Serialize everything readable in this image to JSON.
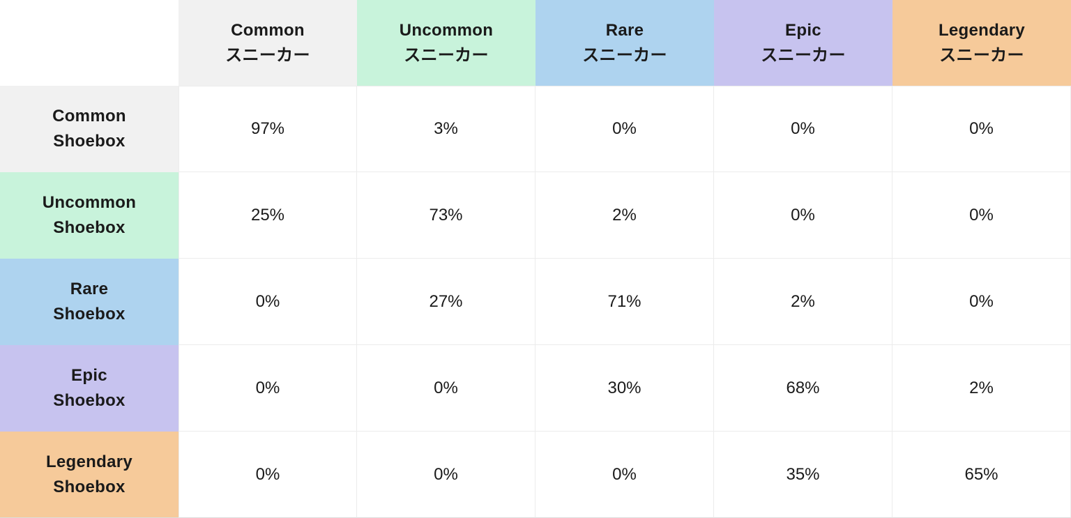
{
  "table": {
    "column_headers": [
      {
        "line1": "Common",
        "line2": "スニーカー",
        "bg": "#f1f1f1"
      },
      {
        "line1": "Uncommon",
        "line2": "スニーカー",
        "bg": "#c8f3db"
      },
      {
        "line1": "Rare",
        "line2": "スニーカー",
        "bg": "#aed3ef"
      },
      {
        "line1": "Epic",
        "line2": "スニーカー",
        "bg": "#c7c3ef"
      },
      {
        "line1": "Legendary",
        "line2": "スニーカー",
        "bg": "#f6ca9a"
      }
    ],
    "row_headers": [
      {
        "line1": "Common",
        "line2": "Shoebox",
        "bg": "#f1f1f1"
      },
      {
        "line1": "Uncommon",
        "line2": "Shoebox",
        "bg": "#c8f3db"
      },
      {
        "line1": "Rare",
        "line2": "Shoebox",
        "bg": "#aed3ef"
      },
      {
        "line1": "Epic",
        "line2": "Shoebox",
        "bg": "#c7c3ef"
      },
      {
        "line1": "Legendary",
        "line2": "Shoebox",
        "bg": "#f6ca9a"
      }
    ],
    "cells": [
      [
        "97%",
        "3%",
        "0%",
        "0%",
        "0%"
      ],
      [
        "25%",
        "73%",
        "2%",
        "0%",
        "0%"
      ],
      [
        "0%",
        "27%",
        "71%",
        "2%",
        "0%"
      ],
      [
        "0%",
        "0%",
        "30%",
        "68%",
        "2%"
      ],
      [
        "0%",
        "0%",
        "0%",
        "35%",
        "65%"
      ]
    ]
  },
  "colors": {
    "common": "#f1f1f1",
    "uncommon": "#c8f3db",
    "rare": "#aed3ef",
    "epic": "#c7c3ef",
    "legendary": "#f6ca9a",
    "text": "#1a1a1a",
    "gridline": "#ececec",
    "cell_background": "#ffffff"
  },
  "chart_data": {
    "type": "table",
    "columns": [
      "Common スニーカー",
      "Uncommon スニーカー",
      "Rare スニーカー",
      "Epic スニーカー",
      "Legendary スニーカー"
    ],
    "rows": [
      "Common Shoebox",
      "Uncommon Shoebox",
      "Rare Shoebox",
      "Epic Shoebox",
      "Legendary Shoebox"
    ],
    "values_percent": [
      [
        97,
        3,
        0,
        0,
        0
      ],
      [
        25,
        73,
        2,
        0,
        0
      ],
      [
        0,
        27,
        71,
        2,
        0
      ],
      [
        0,
        0,
        30,
        68,
        2
      ],
      [
        0,
        0,
        0,
        35,
        65
      ]
    ],
    "unit": "%",
    "layout": "row = shoebox rarity, column = resulting sneaker rarity"
  }
}
